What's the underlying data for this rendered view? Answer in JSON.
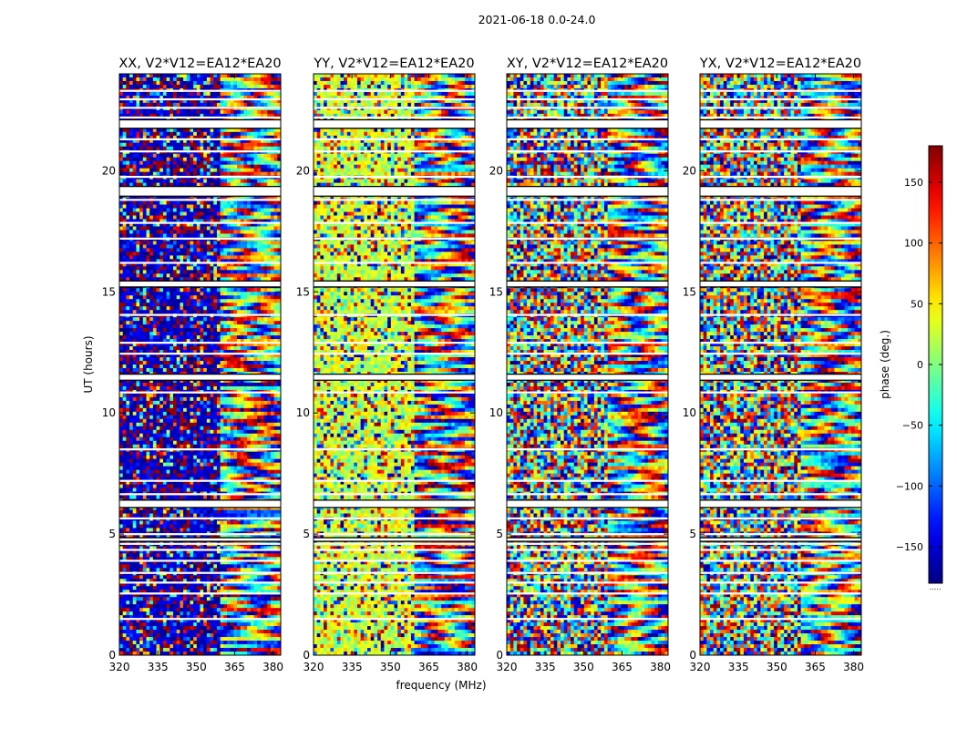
{
  "suptitle": "2021-06-18 0.0-24.0",
  "chart_data": {
    "type": "heatmap",
    "x_label": "frequency (MHz)",
    "y_label": "UT (hours)",
    "x_range": [
      320,
      383
    ],
    "y_range": [
      0,
      24
    ],
    "x_ticks": [
      320,
      335,
      350,
      365,
      380
    ],
    "y_ticks": [
      0,
      5,
      10,
      15,
      20
    ],
    "colorbar": {
      "label": "phase (deg.)",
      "range": [
        -180,
        180
      ],
      "ticks": [
        150,
        100,
        50,
        0,
        -50,
        -100,
        -150
      ],
      "tick_labels": [
        "150",
        "100",
        "50",
        "0",
        "−50",
        "−100",
        "−150"
      ],
      "colormap": "jet",
      "footer": "....."
    },
    "panels": [
      {
        "title": "XX, V2*V12=EA12*EA20",
        "bias": -160,
        "bias_strength": 0.7
      },
      {
        "title": "YY, V2*V12=EA12*EA20",
        "bias": 30,
        "bias_strength": 0.6
      },
      {
        "title": "XY, V2*V12=EA12*EA20",
        "bias": 0,
        "bias_strength": 0.0
      },
      {
        "title": "YX, V2*V12=EA12*EA20",
        "bias": 0,
        "bias_strength": 0.0
      }
    ],
    "white_gaps_ut": [
      23.3,
      22.95,
      22.6,
      22.2,
      21.3,
      20.8,
      19.75,
      18.8,
      17.85,
      17.2,
      16.2,
      15.3,
      14.05,
      12.9,
      12.45,
      11.4,
      10.85,
      8.5,
      7.2,
      6.65,
      6.35,
      5.65,
      5.0,
      4.75,
      4.6,
      4.35,
      3.9,
      3.4,
      3.0,
      2.55,
      1.5
    ],
    "flagged_bands_ut": [
      [
        21.75,
        22.1
      ],
      [
        18.95,
        19.35
      ],
      [
        15.2,
        15.45
      ],
      [
        11.35,
        11.6
      ],
      [
        6.1,
        6.4
      ],
      [
        4.7,
        4.85
      ]
    ]
  }
}
